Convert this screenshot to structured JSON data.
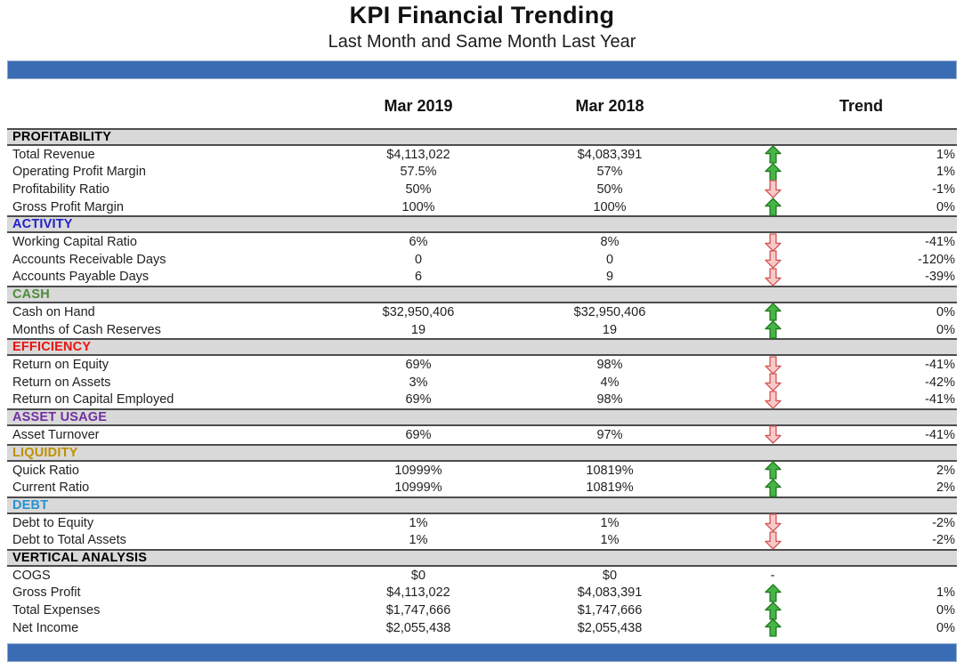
{
  "title": "KPI Financial Trending",
  "subtitle": "Last Month and Same Month Last Year",
  "columns": {
    "col1": "Mar 2019",
    "col2": "Mar 2018",
    "trend": "Trend"
  },
  "trend_none_symbol": "-",
  "colors": {
    "bar_blue": "#3a6cb4",
    "section_bg": "#d9d9d9",
    "section_border": "#4d4d4d",
    "up_arrow_fill": "#46b446",
    "up_arrow_stroke": "#1e7a1e",
    "down_arrow_fill": "#f7c9c9",
    "down_arrow_stroke": "#d45555"
  },
  "sections": [
    {
      "name": "PROFITABILITY",
      "color": "#000000",
      "rows": [
        {
          "label": "Total Revenue",
          "v2019": "$4,113,022",
          "v2018": "$4,083,391",
          "trend": "up",
          "pct": "1%"
        },
        {
          "label": "Operating Profit Margin",
          "v2019": "57.5%",
          "v2018": "57%",
          "trend": "up",
          "pct": "1%"
        },
        {
          "label": "Profitability Ratio",
          "v2019": "50%",
          "v2018": "50%",
          "trend": "down",
          "pct": "-1%"
        },
        {
          "label": "Gross Profit Margin",
          "v2019": "100%",
          "v2018": "100%",
          "trend": "up",
          "pct": "0%"
        }
      ]
    },
    {
      "name": "ACTIVITY",
      "color": "#2020cc",
      "rows": [
        {
          "label": "Working Capital Ratio",
          "v2019": "6%",
          "v2018": "8%",
          "trend": "down",
          "pct": "-41%"
        },
        {
          "label": "Accounts Receivable Days",
          "v2019": "0",
          "v2018": "0",
          "trend": "down",
          "pct": "-120%"
        },
        {
          "label": "Accounts Payable Days",
          "v2019": "6",
          "v2018": "9",
          "trend": "down",
          "pct": "-39%"
        }
      ]
    },
    {
      "name": "CASH",
      "color": "#4e8b3b",
      "rows": [
        {
          "label": "Cash on Hand",
          "v2019": "$32,950,406",
          "v2018": "$32,950,406",
          "trend": "up",
          "pct": "0%"
        },
        {
          "label": "Months of Cash Reserves",
          "v2019": "19",
          "v2018": "19",
          "trend": "up",
          "pct": "0%"
        }
      ]
    },
    {
      "name": "EFFICIENCY",
      "color": "#ee1111",
      "rows": [
        {
          "label": "Return on Equity",
          "v2019": "69%",
          "v2018": "98%",
          "trend": "down",
          "pct": "-41%"
        },
        {
          "label": "Return on Assets",
          "v2019": "3%",
          "v2018": "4%",
          "trend": "down",
          "pct": "-42%"
        },
        {
          "label": "Return on Capital Employed",
          "v2019": "69%",
          "v2018": "98%",
          "trend": "down",
          "pct": "-41%"
        }
      ]
    },
    {
      "name": "ASSET USAGE",
      "color": "#7030a0",
      "rows": [
        {
          "label": "Asset Turnover",
          "v2019": "69%",
          "v2018": "97%",
          "trend": "down",
          "pct": "-41%"
        }
      ]
    },
    {
      "name": "LIQUIDITY",
      "color": "#bf9000",
      "rows": [
        {
          "label": "Quick Ratio",
          "v2019": "10999%",
          "v2018": "10819%",
          "trend": "up",
          "pct": "2%"
        },
        {
          "label": "Current Ratio",
          "v2019": "10999%",
          "v2018": "10819%",
          "trend": "up",
          "pct": "2%"
        }
      ]
    },
    {
      "name": "DEBT",
      "color": "#2792d0",
      "rows": [
        {
          "label": "Debt to Equity",
          "v2019": "1%",
          "v2018": "1%",
          "trend": "down",
          "pct": "-2%"
        },
        {
          "label": "Debt to Total Assets",
          "v2019": "1%",
          "v2018": "1%",
          "trend": "down",
          "pct": "-2%"
        }
      ]
    },
    {
      "name": "VERTICAL ANALYSIS",
      "color": "#000000",
      "rows": [
        {
          "label": "COGS",
          "v2019": "$0",
          "v2018": "$0",
          "trend": "none",
          "pct": ""
        },
        {
          "label": "Gross Profit",
          "v2019": "$4,113,022",
          "v2018": "$4,083,391",
          "trend": "up",
          "pct": "1%"
        },
        {
          "label": "Total Expenses",
          "v2019": "$1,747,666",
          "v2018": "$1,747,666",
          "trend": "up",
          "pct": "0%"
        },
        {
          "label": "Net Income",
          "v2019": "$2,055,438",
          "v2018": "$2,055,438",
          "trend": "up",
          "pct": "0%"
        }
      ]
    }
  ]
}
